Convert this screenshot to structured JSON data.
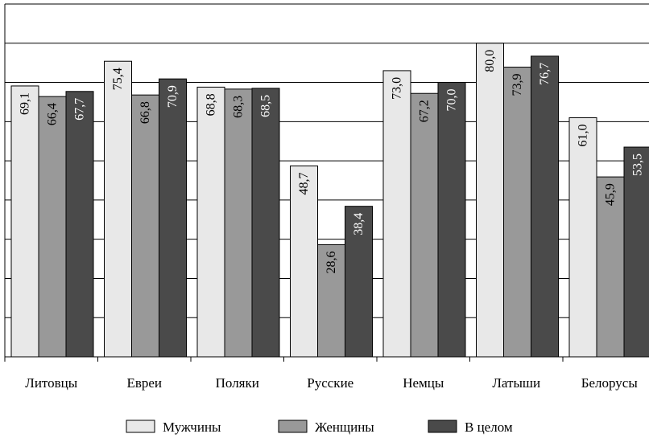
{
  "chart_data": {
    "type": "bar",
    "categories": [
      "Литовцы",
      "Евреи",
      "Поляки",
      "Русские",
      "Немцы",
      "Латыши",
      "Белорусы"
    ],
    "series": [
      {
        "name": "Мужчины",
        "values": [
          69.1,
          75.4,
          68.8,
          48.7,
          73.0,
          80.0,
          61.0
        ],
        "labels": [
          "69,1",
          "75,4",
          "68,8",
          "48,7",
          "73,0",
          "80,0",
          "61,0"
        ],
        "color": "#e8e8e8",
        "label_color": "#000000"
      },
      {
        "name": "Женщины",
        "values": [
          66.4,
          66.8,
          68.3,
          28.6,
          67.2,
          73.9,
          45.9
        ],
        "labels": [
          "66,4",
          "66,8",
          "68,3",
          "28,6",
          "67,2",
          "73,9",
          "45,9"
        ],
        "color": "#999999",
        "label_color": "#000000"
      },
      {
        "name": "В целом",
        "values": [
          67.7,
          70.9,
          68.5,
          38.4,
          70.0,
          76.7,
          53.5
        ],
        "labels": [
          "67,7",
          "70,9",
          "68,5",
          "38,4",
          "70,0",
          "76,7",
          "53,5"
        ],
        "color": "#4a4a4a",
        "label_color": "#ffffff"
      }
    ],
    "ylim": [
      0,
      90
    ],
    "grid": true,
    "legend": "bottom"
  }
}
